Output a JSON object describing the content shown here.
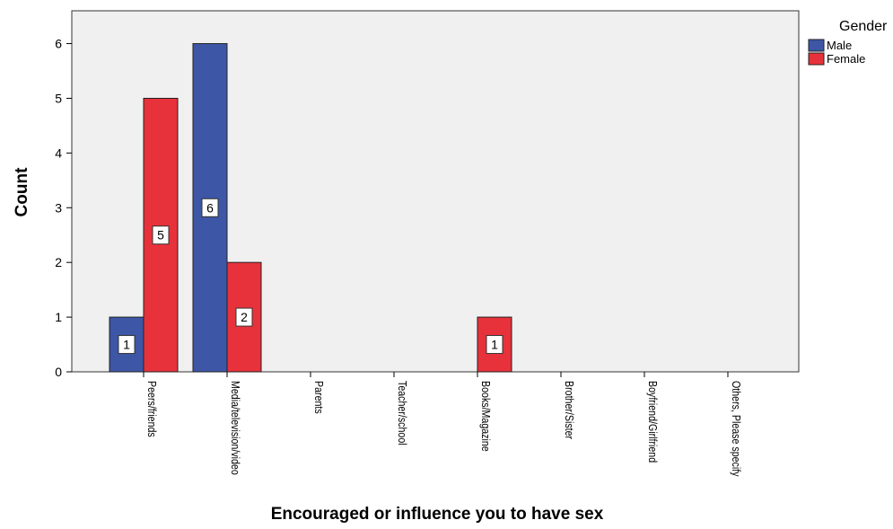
{
  "chart_data": {
    "type": "bar",
    "title": "",
    "xlabel": "Encouraged or influence you to have sex",
    "ylabel": "Count",
    "ylim": [
      0,
      6.6
    ],
    "yticks": [
      0,
      1,
      2,
      3,
      4,
      5,
      6
    ],
    "grid": false,
    "legend_position": "right",
    "legend_title": "Gender",
    "categories": [
      "Peers/friends",
      "Media/television/video",
      "Parents",
      "Teacher/school",
      "Books/Magazine",
      "Brother/Sister",
      "Boyfriend/Girlfriend",
      "Others, Please specify"
    ],
    "series": [
      {
        "name": "Male",
        "color": "#3d56a6",
        "values": [
          1,
          6,
          0,
          0,
          0,
          0,
          0,
          0
        ]
      },
      {
        "name": "Female",
        "color": "#e8323b",
        "values": [
          5,
          2,
          0,
          0,
          1,
          0,
          0,
          0
        ]
      }
    ]
  }
}
